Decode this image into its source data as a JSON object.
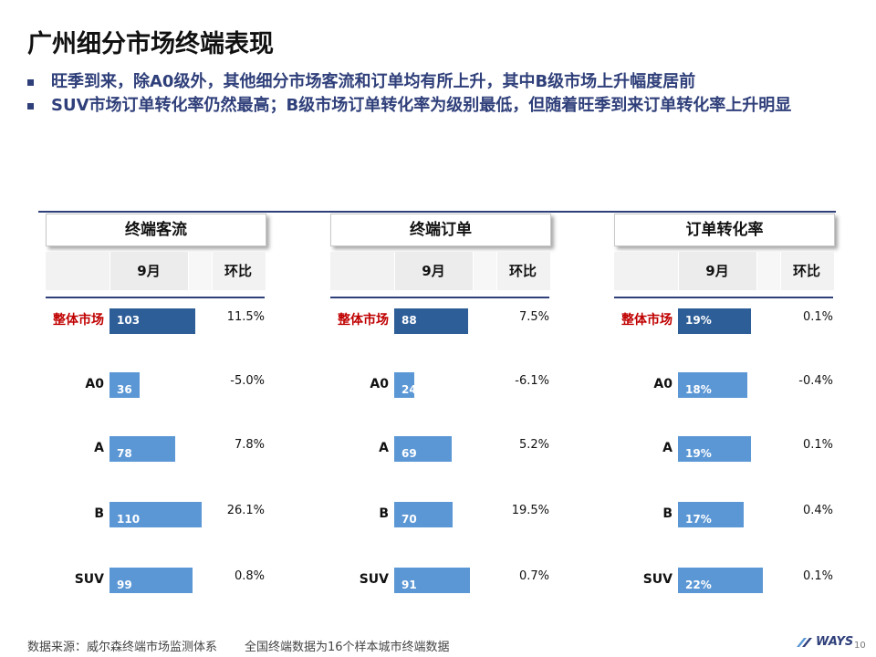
{
  "title": "广州细分市场终端表现",
  "bullets": [
    "旺季到来，除A0级外，其他细分市场客流和订单均有所上升，其中B级市场上升幅度居前",
    "SUV市场订单转化率仍然最高；B级市场订单转化率为级别最低，但随着旺季到来订单转化率上升明显"
  ],
  "colors": {
    "bar": "#5b97d5",
    "bar_total": "#2d5e98",
    "accent": "#2f3f7a",
    "total_label": "#c00000"
  },
  "chart_data": [
    {
      "type": "table",
      "title": "终端客流",
      "col_month": "9月",
      "col_mom": "环比",
      "categories": [
        "整体市场",
        "A0",
        "A",
        "B",
        "SUV"
      ],
      "values": [
        103,
        36,
        78,
        110,
        99
      ],
      "value_labels": [
        "103",
        "36",
        "78",
        "110",
        "99"
      ],
      "mom": [
        "11.5%",
        "-5.0%",
        "7.8%",
        "26.1%",
        "0.8%"
      ],
      "scale_max": 120
    },
    {
      "type": "table",
      "title": "终端订单",
      "col_month": "9月",
      "col_mom": "环比",
      "categories": [
        "整体市场",
        "A0",
        "A",
        "B",
        "SUV"
      ],
      "values": [
        88,
        24,
        69,
        70,
        91
      ],
      "value_labels": [
        "88",
        "24",
        "69",
        "70",
        "91"
      ],
      "mom": [
        "7.5%",
        "-6.1%",
        "5.2%",
        "19.5%",
        "0.7%"
      ],
      "scale_max": 120
    },
    {
      "type": "table",
      "title": "订单转化率",
      "col_month": "9月",
      "col_mom": "环比",
      "categories": [
        "整体市场",
        "A0",
        "A",
        "B",
        "SUV"
      ],
      "values": [
        19,
        18,
        19,
        17,
        22
      ],
      "value_labels": [
        "19%",
        "18%",
        "19%",
        "17%",
        "22%"
      ],
      "mom": [
        "0.1%",
        "-0.4%",
        "0.1%",
        "0.4%",
        "0.1%"
      ],
      "scale_max": 26
    }
  ],
  "footer": {
    "source": "数据来源：威尔森终端市场监测体系",
    "note": "全国终端数据为16个样本城市终端数据",
    "logo": "WAYS",
    "page": "10"
  }
}
